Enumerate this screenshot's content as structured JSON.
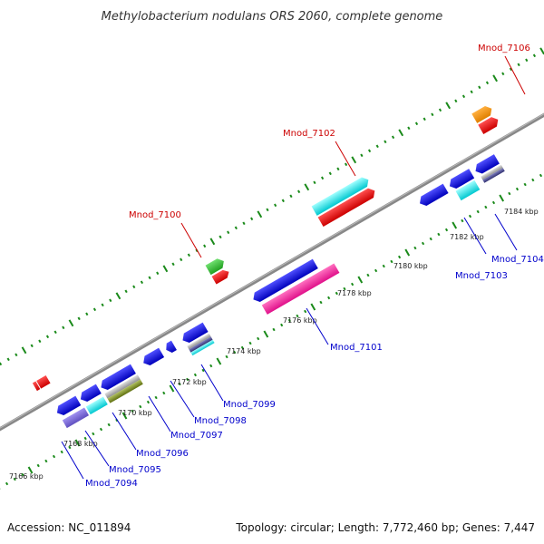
{
  "title": "Methylobacterium nodulans ORS 2060, complete genome",
  "footer": {
    "accession": "Accession: NC_011894",
    "topology": "Topology: circular; Length: 7,772,460 bp; Genes: 7,447"
  },
  "colors": {
    "backbone": "#888888",
    "tick": "#1a8a1a",
    "label_top": "#cc0000",
    "label_bottom": "#0000cc"
  },
  "scale_labels": [
    "7166 kbp",
    "7168 kbp",
    "7170 kbp",
    "7172 kbp",
    "7174 kbp",
    "7176 kbp",
    "7178 kbp",
    "7180 kbp",
    "7182 kbp",
    "7184 kbp"
  ],
  "gene_labels_top": [
    "Mnod_7100",
    "Mnod_7102",
    "Mnod_7106"
  ],
  "gene_labels_bottom": [
    "Mnod_7094",
    "Mnod_7095",
    "Mnod_7096",
    "Mnod_7097",
    "Mnod_7098",
    "Mnod_7099",
    "Mnod_7101",
    "Mnod_7103",
    "Mnod_7104"
  ]
}
